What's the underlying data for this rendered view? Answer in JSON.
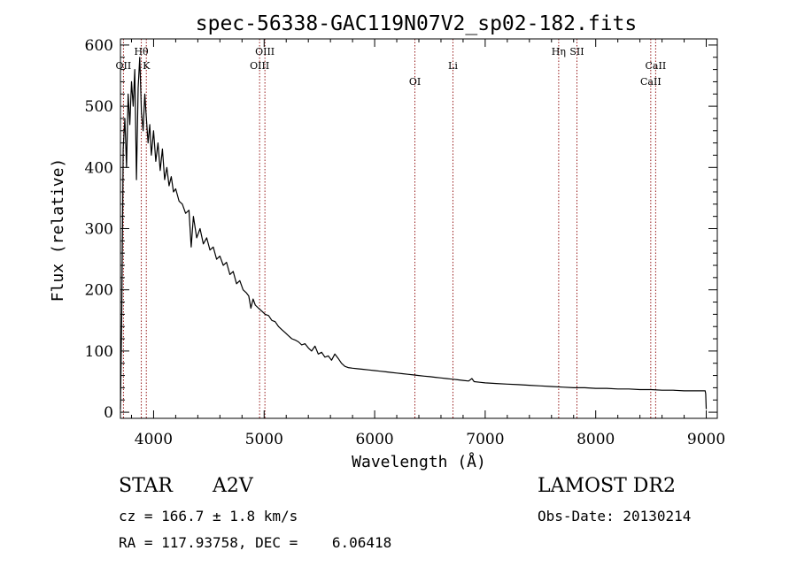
{
  "chart_data": {
    "type": "line",
    "title": "spec-56338-GAC119N07V2_sp02-182.fits",
    "xlabel": "Wavelength (Å)",
    "ylabel": "Flux (relative)",
    "xlim": [
      3700,
      9100
    ],
    "ylim": [
      -10,
      610
    ],
    "x_ticks": [
      4000,
      5000,
      6000,
      7000,
      8000,
      9000
    ],
    "x_tick_labels": [
      "4000",
      "5000",
      "6000",
      "7000",
      "8000",
      "9000"
    ],
    "y_ticks": [
      0,
      100,
      200,
      300,
      400,
      500,
      600
    ],
    "y_tick_labels": [
      "0",
      "100",
      "200",
      "300",
      "400",
      "500",
      "600"
    ],
    "grid": false,
    "series": [
      {
        "color": "#000000",
        "x": [
          3700,
          3712,
          3725,
          3740,
          3755,
          3770,
          3785,
          3800,
          3815,
          3830,
          3845,
          3860,
          3875,
          3890,
          3905,
          3920,
          3935,
          3950,
          3965,
          3980,
          4000,
          4020,
          4040,
          4060,
          4080,
          4100,
          4120,
          4140,
          4160,
          4180,
          4200,
          4230,
          4260,
          4290,
          4320,
          4340,
          4360,
          4390,
          4420,
          4450,
          4480,
          4510,
          4540,
          4570,
          4600,
          4630,
          4660,
          4690,
          4720,
          4750,
          4780,
          4810,
          4840,
          4861,
          4880,
          4900,
          4920,
          4950,
          4980,
          5010,
          5040,
          5070,
          5100,
          5130,
          5160,
          5190,
          5220,
          5250,
          5280,
          5310,
          5340,
          5370,
          5400,
          5430,
          5460,
          5490,
          5520,
          5550,
          5580,
          5610,
          5640,
          5670,
          5700,
          5730,
          5760,
          5800,
          5850,
          5900,
          5950,
          6000,
          6050,
          6100,
          6150,
          6200,
          6250,
          6300,
          6350,
          6400,
          6450,
          6500,
          6550,
          6600,
          6650,
          6700,
          6750,
          6800,
          6850,
          6880,
          6900,
          6950,
          7000,
          7100,
          7200,
          7300,
          7400,
          7500,
          7600,
          7700,
          7800,
          7900,
          8000,
          8100,
          8200,
          8300,
          8400,
          8500,
          8600,
          8700,
          8800,
          8900,
          8990,
          8995,
          9000
        ],
        "values": [
          5,
          160,
          430,
          480,
          400,
          520,
          470,
          540,
          500,
          560,
          380,
          530,
          580,
          490,
          460,
          520,
          480,
          440,
          470,
          420,
          460,
          410,
          440,
          395,
          430,
          380,
          400,
          370,
          385,
          360,
          365,
          345,
          340,
          325,
          330,
          270,
          320,
          285,
          300,
          275,
          285,
          265,
          270,
          250,
          255,
          240,
          245,
          225,
          230,
          210,
          215,
          200,
          195,
          190,
          170,
          185,
          175,
          170,
          165,
          160,
          158,
          150,
          148,
          140,
          135,
          130,
          125,
          120,
          118,
          115,
          110,
          112,
          105,
          100,
          108,
          95,
          98,
          90,
          92,
          85,
          95,
          88,
          80,
          75,
          73,
          72,
          71,
          70,
          69,
          68,
          67,
          66,
          65,
          64,
          63,
          62,
          61,
          60,
          59,
          58,
          57,
          56,
          55,
          54,
          53,
          52,
          51,
          55,
          50,
          49,
          48,
          47,
          46,
          45,
          44,
          43,
          42,
          41,
          40,
          40,
          39,
          39,
          38,
          38,
          37,
          37,
          36,
          36,
          35,
          35,
          35,
          30,
          5
        ]
      }
    ],
    "lines": [
      {
        "x": 3727,
        "label": "OII",
        "row": 1
      },
      {
        "x": 3889,
        "label": "Hθ",
        "row": 0
      },
      {
        "x": 3934,
        "label": "K",
        "row": 1
      },
      {
        "x": 4959,
        "label": "OIII",
        "row": 1
      },
      {
        "x": 5007,
        "label": "OIII",
        "row": 0
      },
      {
        "x": 6364,
        "label": "OI",
        "row": 2
      },
      {
        "x": 6708,
        "label": "Li",
        "row": 1
      },
      {
        "x": 7665,
        "label": "Hη",
        "row": 0
      },
      {
        "x": 7830,
        "label": "SII",
        "row": 0
      },
      {
        "x": 8498,
        "label": "CaII",
        "row": 2
      },
      {
        "x": 8542,
        "label": "CaII",
        "row": 1
      }
    ]
  },
  "info": {
    "object_type": "STAR",
    "subclass": "A2V",
    "survey": "LAMOST DR2",
    "redshift": "cz = 166.7 ± 1.8 km/s",
    "obs_date": "Obs-Date: 20130214",
    "coords": "RA = 117.93758, DEC =    6.06418"
  },
  "colors": {
    "spectrum": "#000000",
    "line_marker": "#8b0000"
  }
}
